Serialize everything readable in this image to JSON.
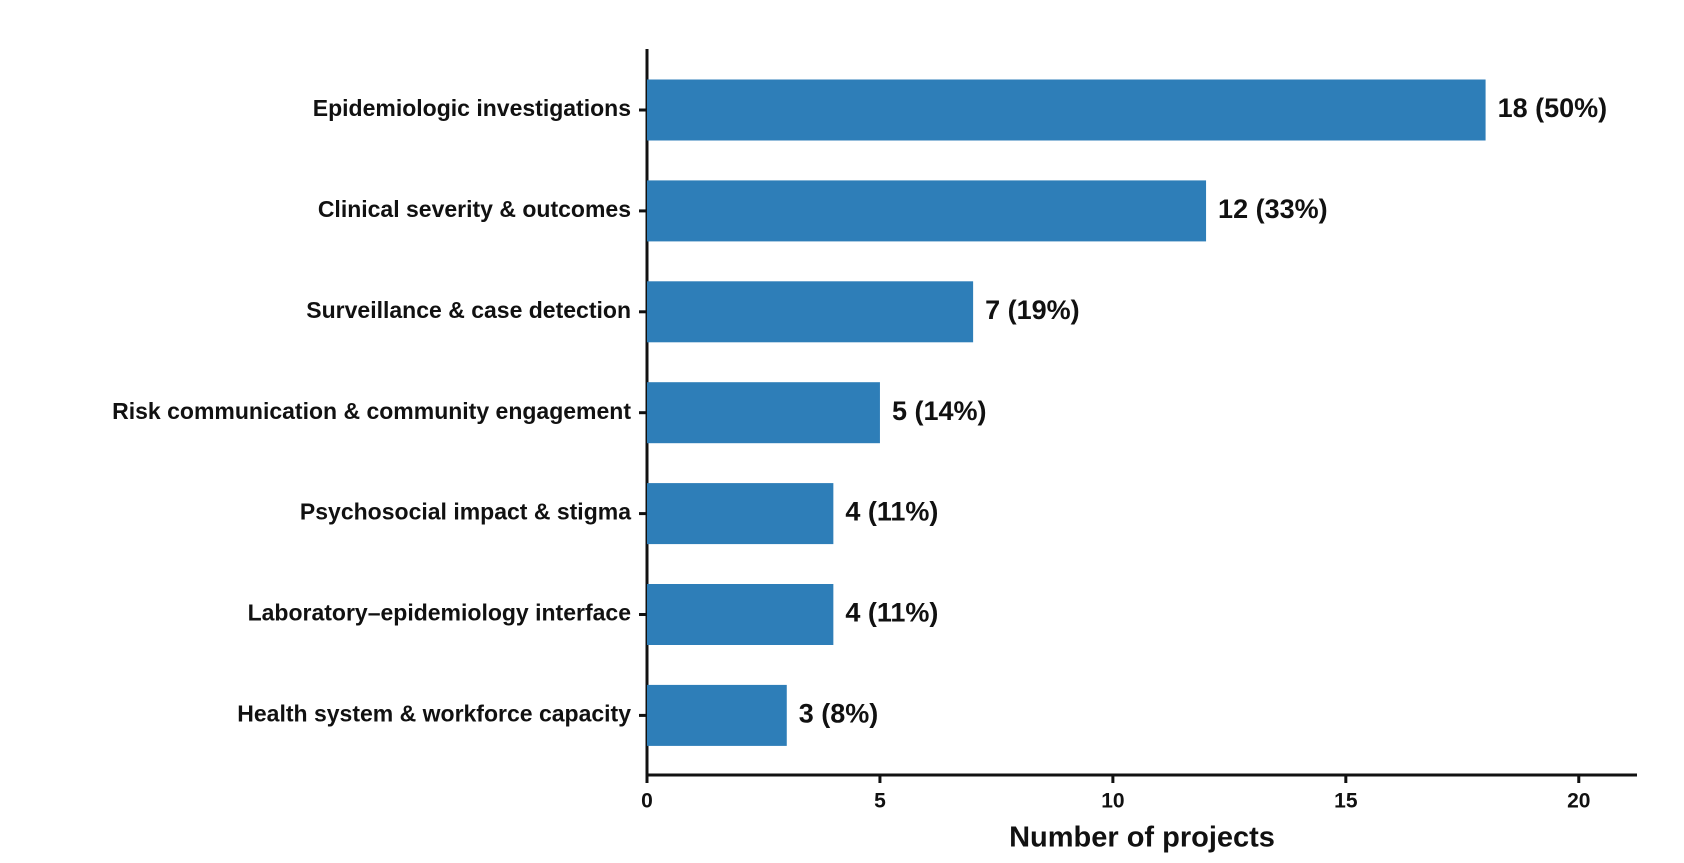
{
  "chart_data": {
    "type": "hbar",
    "categories": [
      "Epidemiologic investigations",
      "Clinical severity & outcomes",
      "Surveillance & case detection",
      "Risk communication & community engagement",
      "Psychosocial impact & stigma",
      "Laboratory–epidemiology interface",
      "Health system & workforce capacity"
    ],
    "values": [
      18,
      12,
      7,
      5,
      4,
      4,
      3
    ],
    "value_labels": [
      "18 (50%)",
      "12 (33%)",
      "7 (19%)",
      "5 (14%)",
      "4 (11%)",
      "4 (11%)",
      "3 (8%)"
    ],
    "color": "#2e7eb8",
    "xlabel": "Number of projects",
    "xlim": [
      0,
      21.25
    ],
    "xticks": [
      0,
      5,
      10,
      15,
      20
    ]
  }
}
